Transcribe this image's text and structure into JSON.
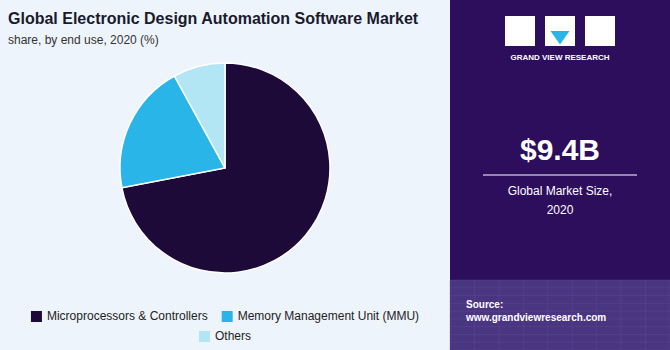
{
  "chart_data": {
    "type": "pie",
    "title": "Global Electronic Design Automation Software Market",
    "subtitle": "share, by end use, 2020 (%)",
    "categories": [
      "Microprocessors & Controllers",
      "Memory Management Unit (MMU)",
      "Others"
    ],
    "values": [
      72,
      20,
      8
    ],
    "colors": [
      "#1e0a38",
      "#29b5e8",
      "#b3e6f5"
    ],
    "legend": "bottom",
    "annotations": [
      "$9.4B",
      "Global Market Size,",
      "2020",
      "Source:\nwww.grandviewresearch.com",
      "GRAND VIEW RESEARCH"
    ]
  }
}
